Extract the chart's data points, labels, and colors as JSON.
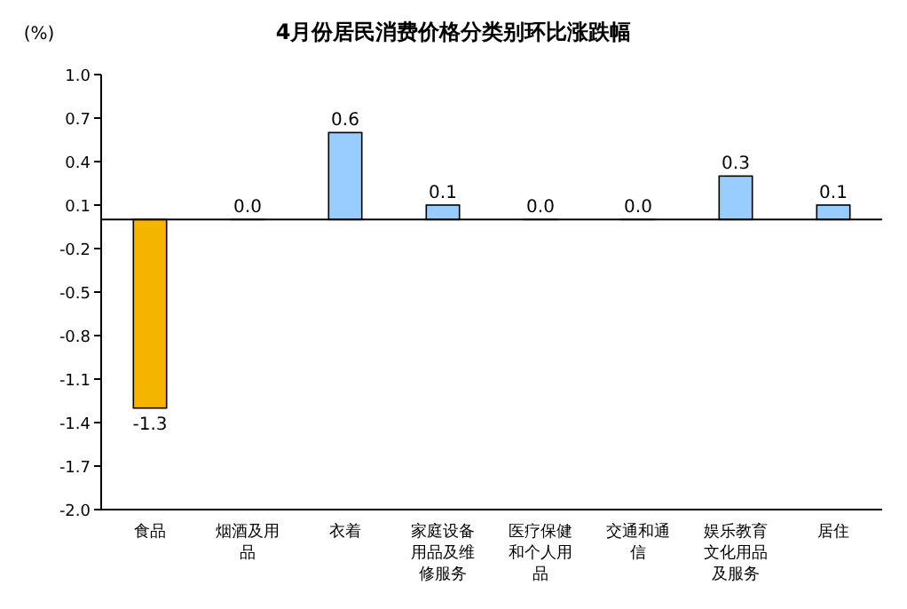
{
  "chart_data": {
    "type": "bar",
    "title": "4月份居民消费价格分类别环比涨跌幅",
    "ylabel": "(%)",
    "categories": [
      "食品",
      "烟酒及用品",
      "衣着",
      "家庭设备用品及维修服务",
      "医疗保健和个人用品",
      "交通和通信",
      "娱乐教育文化用品及服务",
      "居住"
    ],
    "values": [
      -1.3,
      0.0,
      0.6,
      0.1,
      0.0,
      0.0,
      0.3,
      0.1
    ],
    "colors": [
      "#f5b400",
      "#99ccff",
      "#99ccff",
      "#99ccff",
      "#99ccff",
      "#99ccff",
      "#99ccff",
      "#99ccff"
    ],
    "value_labels": [
      "-1.3",
      "0.0",
      "0.6",
      "0.1",
      "0.0",
      "0.0",
      "0.3",
      "0.1"
    ],
    "ylim": [
      -2.0,
      1.0
    ],
    "yticks": [
      {
        "value": 1.0,
        "label": "1.0"
      },
      0.7,
      0.4,
      0.1,
      -0.2,
      -0.5,
      -0.8,
      -1.1,
      -1.4,
      -1.7,
      {
        "value": -2.0,
        "label": "-2.0"
      }
    ]
  }
}
